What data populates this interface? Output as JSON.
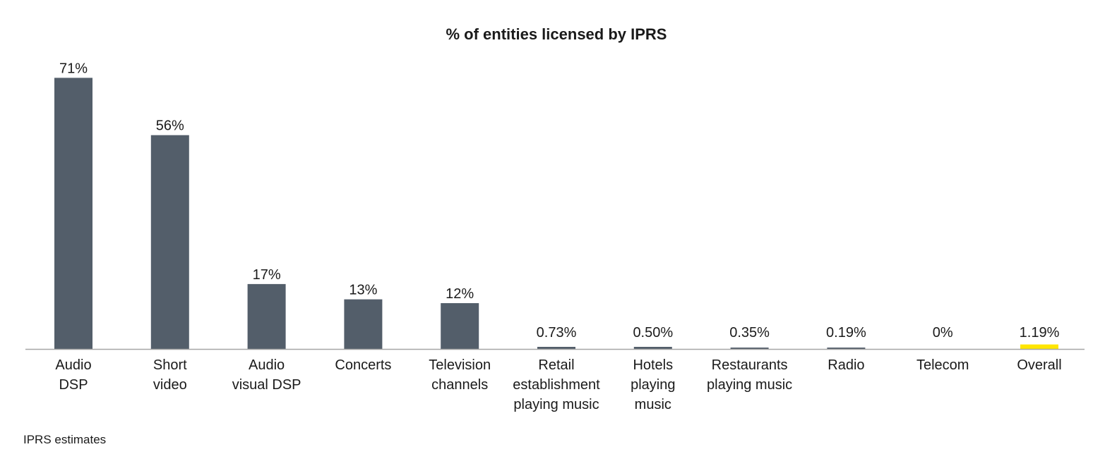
{
  "chart_data": {
    "type": "bar",
    "title": "% of entities licensed by IPRS",
    "categories": [
      [
        "Audio",
        "DSP"
      ],
      [
        "Short",
        "video"
      ],
      [
        "Audio",
        "visual DSP"
      ],
      [
        "Concerts"
      ],
      [
        "Television",
        "channels"
      ],
      [
        "Retail",
        "establishment",
        "playing music"
      ],
      [
        "Hotels",
        "playing",
        "music"
      ],
      [
        "Restaurants",
        "playing music"
      ],
      [
        "Radio"
      ],
      [
        "Telecom"
      ],
      [
        "Overall"
      ]
    ],
    "values": [
      71,
      56,
      17,
      13,
      12,
      0.73,
      0.5,
      0.35,
      0.19,
      0,
      1.19
    ],
    "value_labels": [
      "71%",
      "56%",
      "17%",
      "13%",
      "12%",
      "0.73%",
      "0.50%",
      "0.35%",
      "0.19%",
      "0%",
      "1.19%"
    ],
    "ylim": [
      0,
      72
    ],
    "grid": false,
    "legend": "none",
    "colors": {
      "bar": "#535e6a",
      "highlight": "#ffe600",
      "axis": "#a6a6a6"
    },
    "highlight_index": 10
  },
  "footer": {
    "source": "IPRS estimates"
  }
}
